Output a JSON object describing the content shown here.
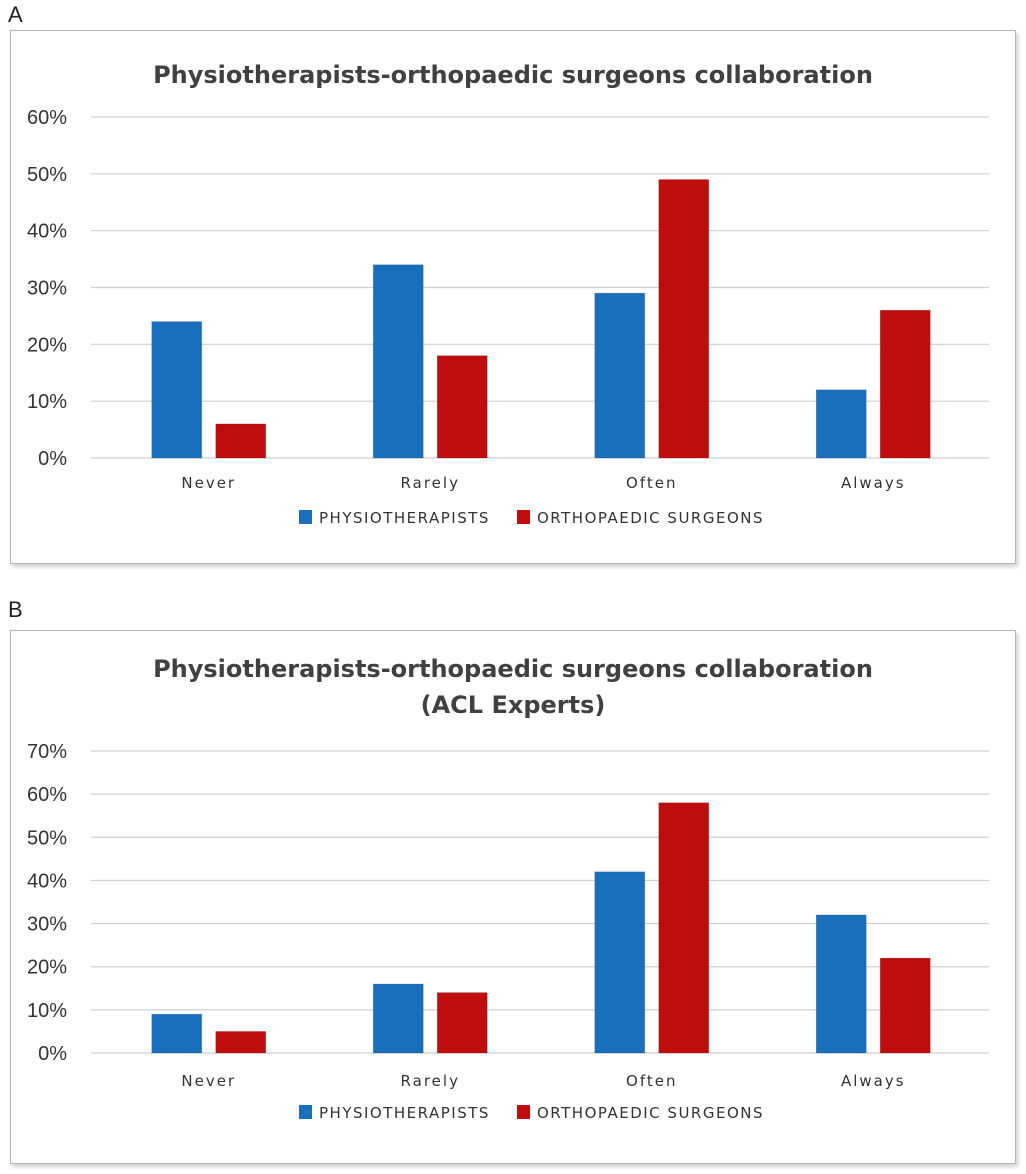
{
  "panels": {
    "a_label": "A",
    "b_label": "B"
  },
  "colors": {
    "physiotherapists": "#1a6fbd",
    "orthopaedic_surgeons": "#bf0d0d"
  },
  "chart_data": [
    {
      "type": "bar",
      "title": [
        "Physiotherapists-orthopaedic surgeons collaboration"
      ],
      "categories": [
        "Never",
        "Rarely",
        "Often",
        "Always"
      ],
      "series": [
        {
          "name": "PHYSIOTHERAPISTS",
          "values": [
            24,
            34,
            29,
            12
          ]
        },
        {
          "name": "ORTHOPAEDIC SURGEONS",
          "values": [
            6,
            18,
            49,
            26
          ]
        }
      ],
      "yticks": [
        "0%",
        "10%",
        "20%",
        "30%",
        "40%",
        "50%",
        "60%"
      ],
      "ylim": [
        0,
        60
      ],
      "xlabel": "",
      "ylabel": "",
      "legend": "bottom"
    },
    {
      "type": "bar",
      "title": [
        "Physiotherapists-orthopaedic surgeons collaboration",
        "(ACL Experts)"
      ],
      "categories": [
        "Never",
        "Rarely",
        "Often",
        "Always"
      ],
      "series": [
        {
          "name": "PHYSIOTHERAPISTS",
          "values": [
            9,
            16,
            42,
            32
          ]
        },
        {
          "name": "ORTHOPAEDIC SURGEONS",
          "values": [
            5,
            14,
            58,
            22
          ]
        }
      ],
      "yticks": [
        "0%",
        "10%",
        "20%",
        "30%",
        "40%",
        "50%",
        "60%",
        "70%"
      ],
      "ylim": [
        0,
        70
      ],
      "xlabel": "",
      "ylabel": "",
      "legend": "bottom"
    }
  ]
}
